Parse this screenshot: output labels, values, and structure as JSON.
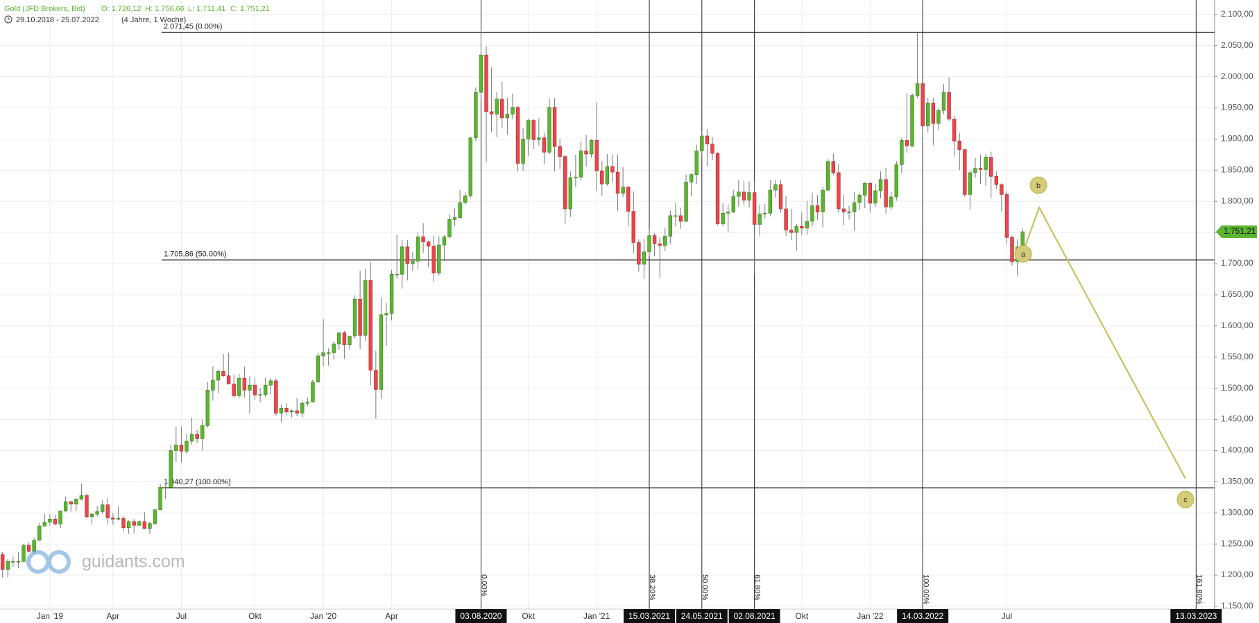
{
  "chart_data": {
    "type": "candlestick",
    "header": {
      "title": "Gold (JFD Brokers, Bid)",
      "ohlc": [
        "O: 1.726,12",
        "H: 1.756,66",
        "L: 1.711,41",
        "C: 1.751,21"
      ],
      "range": "29.10.2018 - 25.07.2022",
      "span": "(4 Jahre, 1 Woche)"
    },
    "watermark": "guidants.com",
    "up_color": "#5cb531",
    "down_color": "#e8474c",
    "wick_color": "#777777",
    "grid": true,
    "categories": [
      null,
      null,
      null,
      null,
      null,
      null,
      null,
      null,
      null,
      null,
      "Jan '19",
      null,
      null,
      null,
      null,
      null,
      null,
      null,
      null,
      null,
      null,
      null,
      "Apr",
      null,
      null,
      null,
      null,
      null,
      null,
      null,
      null,
      null,
      null,
      null,
      null,
      "Jul",
      null,
      null,
      null,
      null,
      null,
      null,
      null,
      null,
      null,
      null,
      null,
      null,
      null,
      "Okt",
      null,
      null,
      null,
      null,
      null,
      null,
      null,
      null,
      null,
      null,
      null,
      null,
      "Jan '20",
      null,
      null,
      null,
      null,
      null,
      null,
      null,
      null,
      null,
      null,
      null,
      null,
      "Apr",
      null,
      null,
      null,
      null,
      null,
      null,
      null,
      null,
      null,
      null,
      null,
      null,
      null,
      null,
      null,
      null,
      "03.08.2020",
      null,
      null,
      null,
      null,
      null,
      null,
      null,
      null,
      "Okt",
      null,
      null,
      null,
      null,
      null,
      null,
      null,
      null,
      null,
      null,
      null,
      null,
      "Jan '21",
      null,
      null,
      null,
      null,
      null,
      null,
      null,
      null,
      null,
      "15.03.2021",
      null,
      null,
      null,
      null,
      null,
      null,
      null,
      null,
      null,
      "24.05.2021",
      null,
      null,
      null,
      null,
      null,
      null,
      null,
      null,
      null,
      "02.08.2021",
      null,
      null,
      null,
      null,
      null,
      null,
      null,
      null,
      "Okt",
      null,
      null,
      null,
      null,
      null,
      null,
      null,
      null,
      null,
      null,
      null,
      null,
      "Jan '22",
      null,
      null,
      null,
      null,
      null,
      null,
      null,
      null,
      null,
      "14.03.2022",
      null,
      null,
      null,
      null,
      null,
      null,
      null,
      null,
      null,
      null,
      null,
      null,
      null,
      null,
      null,
      "Jul",
      null,
      null,
      null,
      null,
      null,
      null,
      null,
      null,
      null,
      null,
      null,
      null,
      null,
      null,
      null,
      null,
      null,
      null,
      null,
      null,
      null,
      null,
      null,
      null,
      null,
      null,
      null,
      null,
      null,
      null,
      null,
      null,
      null,
      null,
      null,
      "13.03.2023"
    ],
    "open": [
      1227,
      1233,
      1209,
      1222,
      1222,
      1222,
      1248,
      1238,
      1256,
      1279,
      1285,
      1290,
      1282,
      1303,
      1318,
      1314,
      1322,
      1328,
      1294,
      1298,
      1302,
      1313,
      1292,
      1290,
      1291,
      1276,
      1286,
      1280,
      1286,
      1275,
      1283,
      1305,
      1341,
      1341,
      1400,
      1409,
      1399,
      1415,
      1426,
      1419,
      1440,
      1497,
      1513,
      1527,
      1520,
      1507,
      1488,
      1516,
      1497,
      1505,
      1489,
      1490,
      1505,
      1512,
      1460,
      1468,
      1462,
      1464,
      1460,
      1476,
      1478,
      1510,
      1552,
      1557,
      1557,
      1571,
      1589,
      1570,
      1584,
      1643,
      1585,
      1673,
      1529,
      1498,
      1618,
      1620,
      1683,
      1683,
      1727,
      1700,
      1704,
      1743,
      1735,
      1728,
      1685,
      1730,
      1743,
      1771,
      1774,
      1798,
      1809,
      1902,
      1975,
      2035,
      1944,
      1940,
      1964,
      1934,
      1940,
      1951,
      1861,
      1900,
      1930,
      1899,
      1902,
      1879,
      1951,
      1888,
      1872,
      1788,
      1838,
      1839,
      1881,
      1876,
      1898,
      1849,
      1828,
      1856,
      1847,
      1813,
      1823,
      1784,
      1734,
      1699,
      1719,
      1745,
      1732,
      1729,
      1744,
      1777,
      1777,
      1768,
      1831,
      1843,
      1881,
      1905,
      1892,
      1877,
      1764,
      1781,
      1783,
      1808,
      1815,
      1802,
      1814,
      1763,
      1780,
      1781,
      1818,
      1827,
      1788,
      1754,
      1750,
      1760,
      1757,
      1768,
      1793,
      1783,
      1818,
      1864,
      1846,
      1788,
      1783,
      1783,
      1798,
      1810,
      1829,
      1797,
      1817,
      1835,
      1791,
      1807,
      1859,
      1898,
      1889,
      1970,
      1989,
      1921,
      1958,
      1925,
      1946,
      1975,
      1932,
      1897,
      1883,
      1811,
      1846,
      1853,
      1851,
      1871,
      1840,
      1827,
      1811,
      1742,
      1703,
      1726.12,
      null,
      null,
      null,
      null,
      null,
      null,
      null,
      null,
      null,
      null,
      null,
      null,
      null,
      null,
      null,
      null,
      null,
      null,
      null,
      null,
      null,
      null,
      null,
      null,
      null,
      null,
      null,
      null,
      null,
      null,
      null,
      null,
      null
    ],
    "high": [
      1243,
      1237,
      1226,
      1230,
      1237,
      1250,
      1252,
      1260,
      1284,
      1298,
      1298,
      1297,
      1304,
      1326,
      1319,
      1324,
      1347,
      1330,
      1300,
      1311,
      1320,
      1324,
      1299,
      1310,
      1295,
      1288,
      1290,
      1288,
      1301,
      1286,
      1306,
      1347,
      1348,
      1410,
      1439,
      1439,
      1427,
      1453,
      1433,
      1450,
      1510,
      1535,
      1530,
      1555,
      1557,
      1522,
      1523,
      1535,
      1519,
      1517,
      1500,
      1517,
      1517,
      1516,
      1474,
      1476,
      1466,
      1484,
      1480,
      1485,
      1514,
      1557,
      1611,
      1564,
      1575,
      1589,
      1592,
      1584,
      1649,
      1689,
      1692,
      1703,
      1560,
      1646,
      1637,
      1690,
      1747,
      1738,
      1738,
      1719,
      1750,
      1765,
      1737,
      1745,
      1744,
      1746,
      1779,
      1789,
      1818,
      1815,
      1903,
      1983,
      2075,
      2049,
      2015,
      1976,
      1992,
      1966,
      1973,
      1953,
      1917,
      1933,
      1933,
      1933,
      1910,
      1965,
      1966,
      1900,
      1875,
      1848,
      1875,
      1896,
      1907,
      1900,
      1959,
      1865,
      1876,
      1875,
      1875,
      1855,
      1824,
      1816,
      1739,
      1739,
      1755,
      1749,
      1742,
      1758,
      1785,
      1797,
      1790,
      1843,
      1845,
      1891,
      1913,
      1916,
      1903,
      1879,
      1797,
      1795,
      1818,
      1834,
      1833,
      1832,
      1832,
      1795,
      1796,
      1834,
      1834,
      1835,
      1809,
      1788,
      1764,
      1782,
      1801,
      1814,
      1810,
      1823,
      1868,
      1877,
      1860,
      1810,
      1793,
      1815,
      1814,
      1831,
      1831,
      1828,
      1848,
      1854,
      1815,
      1865,
      1902,
      1974,
      1974,
      2070,
      1989,
      1966,
      1966,
      1949,
      1988,
      1999,
      1937,
      1910,
      1884,
      1850,
      1870,
      1875,
      1876,
      1880,
      1848,
      1829,
      1816,
      1745,
      1739,
      1756.66,
      null,
      null,
      null,
      null,
      null,
      null,
      null,
      null,
      null,
      null,
      null,
      null,
      null,
      null,
      null,
      null,
      null,
      null,
      null,
      null,
      null,
      null,
      null,
      null,
      null,
      null,
      null,
      null,
      null,
      null,
      null,
      null,
      null
    ],
    "low": [
      1212,
      1196,
      1196,
      1213,
      1211,
      1221,
      1236,
      1234,
      1255,
      1278,
      1279,
      1280,
      1276,
      1301,
      1302,
      1303,
      1320,
      1291,
      1281,
      1294,
      1298,
      1281,
      1281,
      1288,
      1270,
      1266,
      1267,
      1279,
      1274,
      1266,
      1280,
      1305,
      1322,
      1339,
      1382,
      1381,
      1395,
      1410,
      1412,
      1400,
      1437,
      1480,
      1492,
      1518,
      1506,
      1485,
      1484,
      1485,
      1459,
      1481,
      1478,
      1486,
      1490,
      1456,
      1445,
      1457,
      1453,
      1455,
      1453,
      1471,
      1477,
      1508,
      1535,
      1536,
      1546,
      1562,
      1547,
      1562,
      1580,
      1563,
      1576,
      1505,
      1451,
      1483,
      1568,
      1609,
      1676,
      1660,
      1673,
      1688,
      1691,
      1717,
      1694,
      1671,
      1681,
      1704,
      1741,
      1760,
      1772,
      1795,
      1806,
      1897,
      1964,
      1863,
      1911,
      1903,
      1917,
      1907,
      1932,
      1848,
      1849,
      1873,
      1884,
      1890,
      1860,
      1876,
      1848,
      1852,
      1764,
      1775,
      1823,
      1833,
      1856,
      1870,
      1817,
      1809,
      1825,
      1830,
      1785,
      1807,
      1760,
      1717,
      1687,
      1676,
      1712,
      1712,
      1677,
      1720,
      1732,
      1760,
      1756,
      1767,
      1808,
      1828,
      1872,
      1856,
      1866,
      1761,
      1760,
      1750,
      1781,
      1791,
      1794,
      1790,
      1684,
      1745,
      1772,
      1776,
      1806,
      1782,
      1745,
      1738,
      1721,
      1746,
      1746,
      1760,
      1770,
      1758,
      1816,
      1842,
      1782,
      1762,
      1771,
      1753,
      1786,
      1789,
      1782,
      1791,
      1805,
      1780,
      1786,
      1801,
      1845,
      1878,
      1887,
      1966,
      1895,
      1910,
      1890,
      1915,
      1940,
      1929,
      1872,
      1850,
      1807,
      1787,
      1838,
      1828,
      1825,
      1805,
      1820,
      1784,
      1732,
      1697,
      1681,
      1711.41,
      null,
      null,
      null,
      null,
      null,
      null,
      null,
      null,
      null,
      null,
      null,
      null,
      null,
      null,
      null,
      null,
      null,
      null,
      null,
      null,
      null,
      null,
      null,
      null,
      null,
      null,
      null,
      null,
      null,
      null,
      null,
      null,
      null
    ],
    "close": [
      1233,
      1209,
      1222,
      1222,
      1222,
      1248,
      1238,
      1256,
      1279,
      1285,
      1290,
      1282,
      1303,
      1318,
      1314,
      1322,
      1328,
      1294,
      1298,
      1302,
      1313,
      1292,
      1290,
      1291,
      1276,
      1286,
      1280,
      1286,
      1275,
      1283,
      1305,
      1341,
      1341,
      1400,
      1409,
      1399,
      1415,
      1426,
      1419,
      1440,
      1497,
      1513,
      1527,
      1520,
      1507,
      1488,
      1516,
      1497,
      1505,
      1489,
      1490,
      1505,
      1512,
      1460,
      1468,
      1462,
      1464,
      1460,
      1476,
      1478,
      1510,
      1552,
      1557,
      1557,
      1571,
      1589,
      1570,
      1584,
      1643,
      1585,
      1673,
      1529,
      1498,
      1618,
      1620,
      1683,
      1683,
      1727,
      1700,
      1704,
      1743,
      1735,
      1728,
      1685,
      1730,
      1743,
      1771,
      1774,
      1798,
      1809,
      1902,
      1975,
      2035,
      1944,
      1940,
      1964,
      1934,
      1940,
      1951,
      1861,
      1900,
      1930,
      1899,
      1902,
      1879,
      1951,
      1888,
      1872,
      1788,
      1838,
      1839,
      1881,
      1876,
      1898,
      1849,
      1828,
      1856,
      1847,
      1813,
      1823,
      1784,
      1734,
      1699,
      1719,
      1745,
      1732,
      1729,
      1744,
      1777,
      1777,
      1768,
      1831,
      1843,
      1881,
      1905,
      1892,
      1877,
      1764,
      1781,
      1783,
      1808,
      1815,
      1802,
      1814,
      1763,
      1780,
      1781,
      1818,
      1827,
      1788,
      1754,
      1750,
      1760,
      1757,
      1768,
      1793,
      1783,
      1818,
      1864,
      1846,
      1788,
      1783,
      1783,
      1798,
      1810,
      1829,
      1797,
      1817,
      1835,
      1791,
      1807,
      1859,
      1898,
      1889,
      1970,
      1989,
      1921,
      1958,
      1925,
      1946,
      1975,
      1932,
      1897,
      1883,
      1811,
      1846,
      1853,
      1851,
      1871,
      1840,
      1827,
      1811,
      1742,
      1703,
      1727,
      1751.21,
      null,
      null,
      null,
      null,
      null,
      null,
      null,
      null,
      null,
      null,
      null,
      null,
      null,
      null,
      null,
      null,
      null,
      null,
      null,
      null,
      null,
      null,
      null,
      null,
      null,
      null,
      null,
      null,
      null,
      null,
      null,
      null,
      null
    ],
    "ylim": [
      1145.5,
      2123.2
    ],
    "yticks": [
      {
        "value": 1150,
        "label": "1.150,00"
      },
      {
        "value": 1200,
        "label": "1.200,00"
      },
      {
        "value": 1250,
        "label": "1.250,00"
      },
      {
        "value": 1300,
        "label": "1.300,00"
      },
      {
        "value": 1350,
        "label": "1.350,00"
      },
      {
        "value": 1400,
        "label": "1.400,00"
      },
      {
        "value": 1450,
        "label": "1.450,00"
      },
      {
        "value": 1500,
        "label": "1.500,00"
      },
      {
        "value": 1550,
        "label": "1.550,00"
      },
      {
        "value": 1600,
        "label": "1.600,00"
      },
      {
        "value": 1650,
        "label": "1.650,00"
      },
      {
        "value": 1700,
        "label": "1.700,00"
      },
      {
        "value": 1750,
        "label": "1.750,00"
      },
      {
        "value": 1800,
        "label": "1.800,00"
      },
      {
        "value": 1850,
        "label": "1.850,00"
      },
      {
        "value": 1900,
        "label": "1.900,00"
      },
      {
        "value": 1950,
        "label": "1.950,00"
      },
      {
        "value": 2000,
        "label": "2.000,00"
      },
      {
        "value": 2050,
        "label": "2.050,00"
      },
      {
        "value": 2100,
        "label": "2.100,00"
      }
    ],
    "fib_levels": [
      {
        "value": 2071.45,
        "label": "2.071,45 (0.00%)"
      },
      {
        "value": 1705.86,
        "label": "1.705,86 (50.00%)"
      },
      {
        "value": 1340.27,
        "label": "1.340,27 (100.00%)"
      }
    ],
    "time_lines": [
      {
        "date": "03.08.2020",
        "label": "0.00%"
      },
      {
        "date": "15.03.2021",
        "label": "38.20%"
      },
      {
        "date": "24.05.2021",
        "label": "50.00%"
      },
      {
        "date": "02.08.2021",
        "label": "61.80%"
      },
      {
        "date": "14.03.2022",
        "label": "100.00%"
      },
      {
        "date": "13.03.2023",
        "label": "161.80%"
      }
    ],
    "last_price": {
      "value": 1751.21,
      "label": "1.751,21"
    },
    "wave_labels": [
      "a",
      "b",
      "c"
    ]
  }
}
